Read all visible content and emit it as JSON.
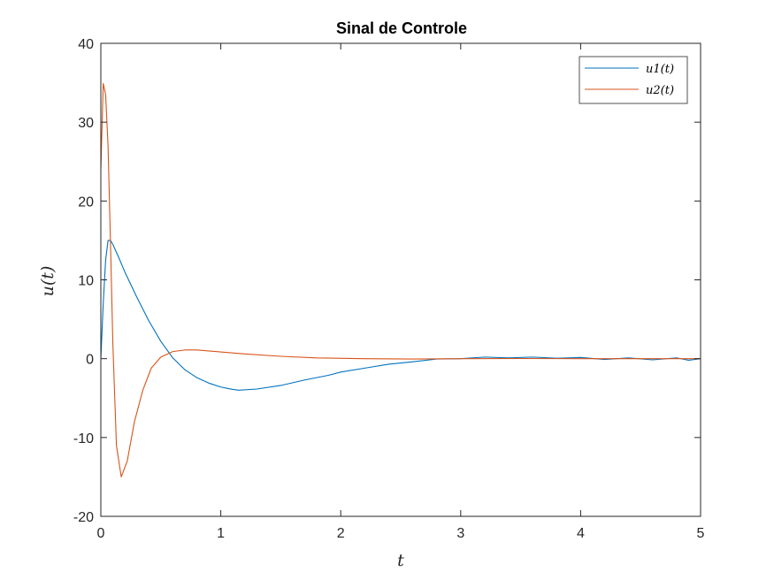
{
  "chart_data": {
    "type": "line",
    "title": "Sinal de Controle",
    "xlabel": "t",
    "ylabel": "u(t)",
    "xlim": [
      0,
      5
    ],
    "ylim": [
      -20,
      40
    ],
    "xticks": [
      0,
      1,
      2,
      3,
      4,
      5
    ],
    "yticks": [
      -20,
      -10,
      0,
      10,
      20,
      30,
      40
    ],
    "grid": false,
    "legend_position": "top-right",
    "series": [
      {
        "name": "u1(t)",
        "color": "#0072BD",
        "points": [
          [
            0,
            0
          ],
          [
            0.02,
            7
          ],
          [
            0.04,
            12.5
          ],
          [
            0.06,
            15
          ],
          [
            0.08,
            15
          ],
          [
            0.1,
            14.5
          ],
          [
            0.15,
            12.8
          ],
          [
            0.2,
            11
          ],
          [
            0.3,
            7.8
          ],
          [
            0.4,
            4.8
          ],
          [
            0.5,
            2.2
          ],
          [
            0.6,
            0.1
          ],
          [
            0.7,
            -1.4
          ],
          [
            0.8,
            -2.4
          ],
          [
            0.9,
            -3.1
          ],
          [
            1.0,
            -3.6
          ],
          [
            1.1,
            -3.9
          ],
          [
            1.15,
            -4.0
          ],
          [
            1.3,
            -3.85
          ],
          [
            1.5,
            -3.4
          ],
          [
            1.7,
            -2.7
          ],
          [
            1.9,
            -2.1
          ],
          [
            2.0,
            -1.7
          ],
          [
            2.2,
            -1.2
          ],
          [
            2.4,
            -0.7
          ],
          [
            2.6,
            -0.4
          ],
          [
            2.8,
            -0.05
          ],
          [
            3.0,
            0
          ],
          [
            3.2,
            0.2
          ],
          [
            3.4,
            0.1
          ],
          [
            3.6,
            0.2
          ],
          [
            3.8,
            0.05
          ],
          [
            4.0,
            0.15
          ],
          [
            4.2,
            -0.1
          ],
          [
            4.4,
            0.1
          ],
          [
            4.6,
            -0.15
          ],
          [
            4.8,
            0.1
          ],
          [
            4.9,
            -0.2
          ],
          [
            5.0,
            0
          ]
        ]
      },
      {
        "name": "u2(t)",
        "color": "#D95319",
        "points": [
          [
            0,
            24
          ],
          [
            0.02,
            34.9
          ],
          [
            0.04,
            33.5
          ],
          [
            0.06,
            27
          ],
          [
            0.08,
            15
          ],
          [
            0.1,
            2
          ],
          [
            0.13,
            -11
          ],
          [
            0.17,
            -15
          ],
          [
            0.22,
            -13
          ],
          [
            0.28,
            -8
          ],
          [
            0.35,
            -4
          ],
          [
            0.42,
            -1.2
          ],
          [
            0.5,
            0.2
          ],
          [
            0.6,
            0.9
          ],
          [
            0.7,
            1.1
          ],
          [
            0.8,
            1.1
          ],
          [
            1.0,
            0.85
          ],
          [
            1.2,
            0.6
          ],
          [
            1.5,
            0.3
          ],
          [
            1.8,
            0.1
          ],
          [
            2.2,
            0.0
          ],
          [
            2.6,
            -0.05
          ],
          [
            3.0,
            0
          ],
          [
            3.5,
            0.02
          ],
          [
            4.0,
            0
          ],
          [
            4.5,
            0
          ],
          [
            5.0,
            0
          ]
        ]
      }
    ]
  }
}
